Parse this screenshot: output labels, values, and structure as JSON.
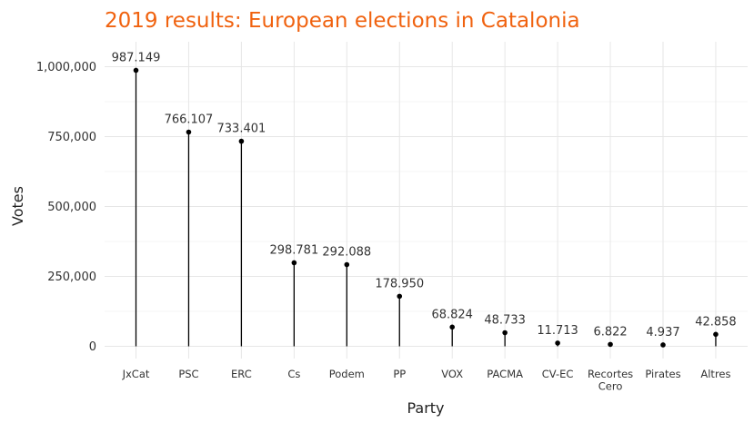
{
  "chart_data": {
    "type": "lollipop",
    "title": "2019 results: European elections in Catalonia",
    "xlabel": "Party",
    "ylabel": "Votes",
    "ylim": [
      0,
      1000000
    ],
    "yticks": [
      0,
      250000,
      500000,
      750000,
      1000000
    ],
    "ytick_labels": [
      "0",
      "250,000",
      "500,000",
      "750,000",
      "1,000,000"
    ],
    "grid": true,
    "categories": [
      "JxCat",
      "PSC",
      "ERC",
      "Cs",
      "Podem",
      "PP",
      "VOX",
      "PACMA",
      "CV-EC",
      "Recortes Cero",
      "Pirates",
      "Altres"
    ],
    "values": [
      987149,
      766107,
      733401,
      298781,
      292088,
      178950,
      68824,
      48733,
      11713,
      6822,
      4937,
      42858
    ],
    "data_labels": [
      "987.149",
      "766.107",
      "733.401",
      "298.781",
      "292.088",
      "178.950",
      "68.824",
      "48.733",
      "11.713",
      "6.822",
      "4.937",
      "42.858"
    ]
  }
}
